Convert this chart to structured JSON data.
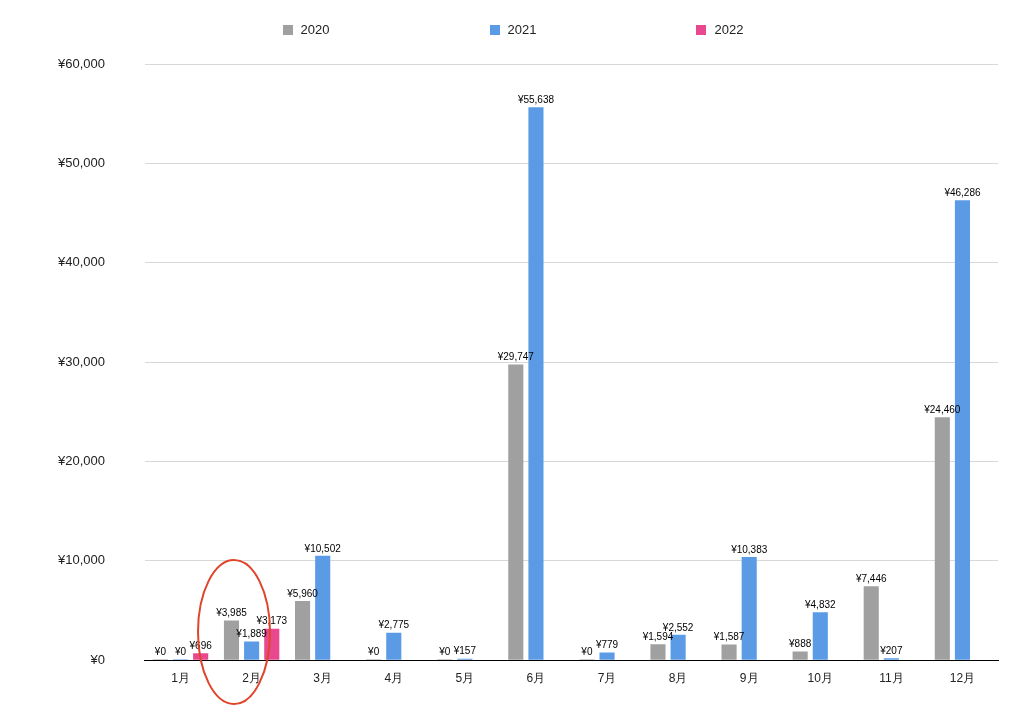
{
  "chart_data": {
    "type": "bar",
    "categories": [
      "1月",
      "2月",
      "3月",
      "4月",
      "5月",
      "6月",
      "7月",
      "8月",
      "9月",
      "10月",
      "11月",
      "12月"
    ],
    "series": [
      {
        "name": "2020",
        "color": "#a0a0a0",
        "values": [
          0,
          3985,
          5960,
          0,
          0,
          29747,
          0,
          1594,
          1587,
          888,
          7446,
          24460
        ],
        "value_labels": [
          "¥0",
          "¥3,985",
          "¥5,960",
          "¥0",
          "¥0",
          "¥29,747",
          "¥0",
          "¥1,594",
          "¥1,587",
          "¥888",
          "¥7,446",
          "¥24,460"
        ]
      },
      {
        "name": "2021",
        "color": "#5b9be6",
        "values": [
          0,
          1889,
          10502,
          2775,
          157,
          55638,
          779,
          2552,
          10383,
          4832,
          207,
          46286
        ],
        "value_labels": [
          "¥0",
          "¥1,889",
          "¥10,502",
          "¥2,775",
          "¥157",
          "¥55,638",
          "¥779",
          "¥2,552",
          "¥10,383",
          "¥4,832",
          "¥207",
          "¥46,286"
        ]
      },
      {
        "name": "2022",
        "color": "#e8498e",
        "values": [
          696,
          3173,
          null,
          null,
          null,
          null,
          null,
          null,
          null,
          null,
          null,
          null
        ],
        "value_labels": [
          "¥696",
          "¥3,173",
          null,
          null,
          null,
          null,
          null,
          null,
          null,
          null,
          null,
          null
        ]
      }
    ],
    "ylim": [
      0,
      60000
    ],
    "yticks": [
      {
        "value": 0,
        "label": "¥0"
      },
      {
        "value": 10000,
        "label": "¥10,000"
      },
      {
        "value": 20000,
        "label": "¥20,000"
      },
      {
        "value": 30000,
        "label": "¥30,000"
      },
      {
        "value": 40000,
        "label": "¥40,000"
      },
      {
        "value": 50000,
        "label": "¥50,000"
      },
      {
        "value": 60000,
        "label": "¥60,000"
      }
    ],
    "grid": "y",
    "legend": "top"
  }
}
